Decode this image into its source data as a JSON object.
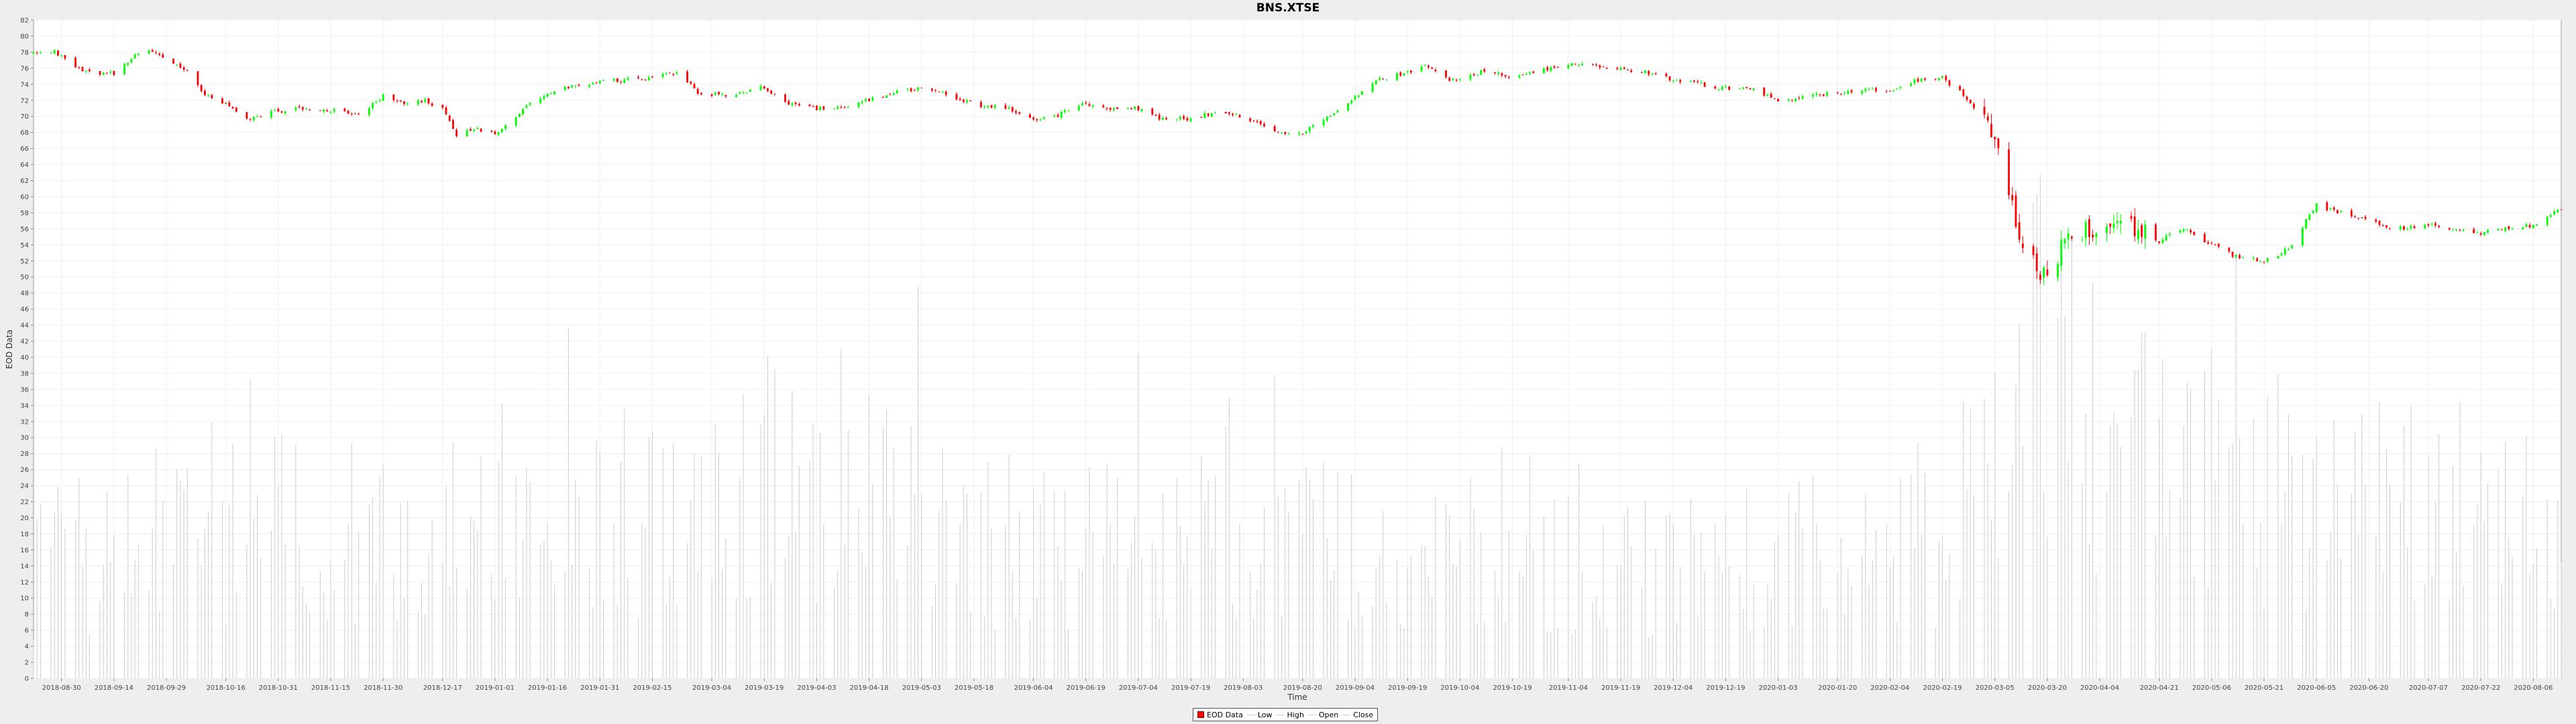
{
  "chart_data": {
    "type": "candlestick",
    "title": "BNS.XTSE",
    "xlabel": "Time",
    "ylabel": "EOD Data",
    "ylim": [
      0,
      82
    ],
    "y_ticks": [
      0,
      2,
      4,
      6,
      8,
      10,
      12,
      14,
      16,
      18,
      20,
      22,
      24,
      26,
      28,
      30,
      32,
      34,
      36,
      38,
      40,
      42,
      44,
      46,
      48,
      50,
      52,
      54,
      56,
      58,
      60,
      62,
      64,
      66,
      68,
      70,
      72,
      74,
      76,
      78,
      80,
      82
    ],
    "x_range": [
      "2018-08-22",
      "2020-08-14"
    ],
    "x_ticks": [
      "2018-08-30",
      "2018-09-14",
      "2018-09-29",
      "2018-10-16",
      "2018-10-31",
      "2018-11-15",
      "2018-11-30",
      "2018-12-17",
      "2019-01-01",
      "2019-01-16",
      "2019-01-31",
      "2019-02-15",
      "2019-03-04",
      "2019-03-19",
      "2019-04-03",
      "2019-04-18",
      "2019-05-03",
      "2019-05-18",
      "2019-06-04",
      "2019-06-19",
      "2019-07-04",
      "2019-07-19",
      "2019-08-03",
      "2019-08-20",
      "2019-09-04",
      "2019-09-19",
      "2019-10-04",
      "2019-10-19",
      "2019-11-04",
      "2019-11-19",
      "2019-12-04",
      "2019-12-19",
      "2020-01-03",
      "2020-01-20",
      "2020-02-04",
      "2020-02-19",
      "2020-03-05",
      "2020-03-20",
      "2020-04-04",
      "2020-04-21",
      "2020-05-06",
      "2020-05-21",
      "2020-06-05",
      "2020-06-20",
      "2020-07-07",
      "2020-07-22",
      "2020-08-06"
    ],
    "price_path": [
      [
        "2018-08-22",
        77.8
      ],
      [
        "2018-08-28",
        78.2
      ],
      [
        "2018-09-02",
        76.5
      ],
      [
        "2018-09-07",
        75.4
      ],
      [
        "2018-09-14",
        75.4
      ],
      [
        "2018-09-20",
        77.5
      ],
      [
        "2018-09-25",
        78.2
      ],
      [
        "2018-09-29",
        77.0
      ],
      [
        "2018-10-05",
        75.5
      ],
      [
        "2018-10-10",
        72.5
      ],
      [
        "2018-10-16",
        71.5
      ],
      [
        "2018-10-22",
        69.5
      ],
      [
        "2018-10-28",
        70.5
      ],
      [
        "2018-11-05",
        71.0
      ],
      [
        "2018-11-15",
        70.8
      ],
      [
        "2018-11-23",
        70.0
      ],
      [
        "2018-11-30",
        72.5
      ],
      [
        "2018-12-06",
        71.6
      ],
      [
        "2018-12-12",
        72.0
      ],
      [
        "2018-12-17",
        71.0
      ],
      [
        "2018-12-21",
        67.5
      ],
      [
        "2018-12-26",
        68.6
      ],
      [
        "2019-01-01",
        67.8
      ],
      [
        "2019-01-08",
        70.5
      ],
      [
        "2019-01-16",
        73.0
      ],
      [
        "2019-01-23",
        73.7
      ],
      [
        "2019-01-31",
        74.5
      ],
      [
        "2019-02-07",
        74.5
      ],
      [
        "2019-02-15",
        74.8
      ],
      [
        "2019-02-22",
        75.5
      ],
      [
        "2019-02-28",
        73.0
      ],
      [
        "2019-03-10",
        72.5
      ],
      [
        "2019-03-19",
        73.7
      ],
      [
        "2019-03-26",
        71.5
      ],
      [
        "2019-04-03",
        71.0
      ],
      [
        "2019-04-12",
        71.2
      ],
      [
        "2019-04-25",
        73.0
      ],
      [
        "2019-05-03",
        73.5
      ],
      [
        "2019-05-10",
        72.8
      ],
      [
        "2019-05-18",
        71.5
      ],
      [
        "2019-05-28",
        71.0
      ],
      [
        "2019-06-04",
        69.5
      ],
      [
        "2019-06-10",
        70.0
      ],
      [
        "2019-06-19",
        71.6
      ],
      [
        "2019-06-27",
        71.0
      ],
      [
        "2019-07-04",
        71.0
      ],
      [
        "2019-07-12",
        69.5
      ],
      [
        "2019-07-19",
        69.8
      ],
      [
        "2019-07-26",
        70.5
      ],
      [
        "2019-08-03",
        70.0
      ],
      [
        "2019-08-12",
        68.0
      ],
      [
        "2019-08-20",
        68.0
      ],
      [
        "2019-08-26",
        69.5
      ],
      [
        "2019-09-04",
        72.5
      ],
      [
        "2019-09-10",
        74.5
      ],
      [
        "2019-09-19",
        75.5
      ],
      [
        "2019-09-24",
        76.5
      ],
      [
        "2019-10-01",
        74.5
      ],
      [
        "2019-10-10",
        75.5
      ],
      [
        "2019-10-19",
        75.0
      ],
      [
        "2019-10-28",
        75.8
      ],
      [
        "2019-11-04",
        76.5
      ],
      [
        "2019-11-12",
        76.2
      ],
      [
        "2019-11-19",
        76.0
      ],
      [
        "2019-11-26",
        75.5
      ],
      [
        "2019-12-04",
        74.5
      ],
      [
        "2019-12-12",
        74.0
      ],
      [
        "2019-12-19",
        73.5
      ],
      [
        "2019-12-26",
        73.5
      ],
      [
        "2020-01-03",
        72.0
      ],
      [
        "2020-01-12",
        72.5
      ],
      [
        "2020-01-20",
        73.0
      ],
      [
        "2020-01-28",
        73.3
      ],
      [
        "2020-02-04",
        73.0
      ],
      [
        "2020-02-11",
        74.5
      ],
      [
        "2020-02-19",
        74.8
      ],
      [
        "2020-02-24",
        73.0
      ],
      [
        "2020-03-01",
        70.0
      ],
      [
        "2020-03-05",
        67.0
      ],
      [
        "2020-03-09",
        60.0
      ],
      [
        "2020-03-13",
        54.0
      ],
      [
        "2020-03-16",
        52.0
      ],
      [
        "2020-03-20",
        49.5
      ],
      [
        "2020-03-24",
        53.5
      ],
      [
        "2020-03-28",
        55.5
      ],
      [
        "2020-04-04",
        56.0
      ],
      [
        "2020-04-12",
        56.5
      ],
      [
        "2020-04-21",
        54.5
      ],
      [
        "2020-04-28",
        56.0
      ],
      [
        "2020-05-06",
        54.0
      ],
      [
        "2020-05-13",
        52.5
      ],
      [
        "2020-05-21",
        52.0
      ],
      [
        "2020-05-28",
        53.5
      ],
      [
        "2020-06-05",
        59.0
      ],
      [
        "2020-06-12",
        58.0
      ],
      [
        "2020-06-20",
        57.0
      ],
      [
        "2020-06-27",
        56.0
      ],
      [
        "2020-07-07",
        56.5
      ],
      [
        "2020-07-14",
        56.0
      ],
      [
        "2020-07-22",
        55.5
      ],
      [
        "2020-07-29",
        56.0
      ],
      [
        "2020-08-06",
        56.5
      ],
      [
        "2020-08-14",
        58.5
      ]
    ],
    "volume_path": [
      [
        "2018-08-22",
        12
      ],
      [
        "2018-10-01",
        16
      ],
      [
        "2018-12-01",
        16
      ],
      [
        "2019-02-15",
        18
      ],
      [
        "2019-03-20",
        22
      ],
      [
        "2019-06-01",
        14
      ],
      [
        "2019-09-01",
        15
      ],
      [
        "2019-11-01",
        12
      ],
      [
        "2020-02-15",
        14
      ],
      [
        "2020-03-15",
        34
      ],
      [
        "2020-04-15",
        24
      ],
      [
        "2020-06-01",
        20
      ],
      [
        "2020-08-14",
        16
      ]
    ],
    "legend_position": "bottom-center",
    "series": [
      {
        "name": "EOD Data",
        "kind": "candle"
      },
      {
        "name": "Low",
        "kind": "line"
      },
      {
        "name": "High",
        "kind": "line"
      },
      {
        "name": "Open",
        "kind": "line"
      },
      {
        "name": "Close",
        "kind": "line"
      }
    ],
    "colors": {
      "up": "#00ff00",
      "down": "#ff0000",
      "volume": "#cccccc",
      "grid": "#f0f0f0"
    },
    "grid": true
  }
}
